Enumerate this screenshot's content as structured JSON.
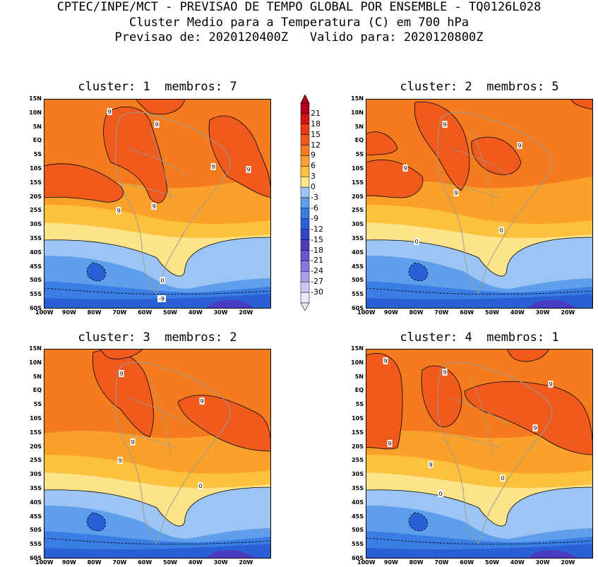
{
  "header": {
    "line1": "CPTEC/INPE/MCT - PREVISAO DE TEMPO GLOBAL POR ENSEMBLE - TQ0126L028",
    "line2": "Cluster Medio para a Temperatura (C) em 700 hPa",
    "line3": "Previsao de: 2020120400Z   Valido para: 2020120800Z"
  },
  "axes": {
    "lat_labels": [
      "15N",
      "10N",
      "5N",
      "EQ",
      "5S",
      "10S",
      "15S",
      "20S",
      "25S",
      "30S",
      "35S",
      "40S",
      "45S",
      "50S",
      "55S",
      "60S"
    ],
    "lon_labels": [
      "100W",
      "90W",
      "80W",
      "70W",
      "60W",
      "50W",
      "40W",
      "30W",
      "20W"
    ]
  },
  "colorbar": {
    "labels": [
      "21",
      "18",
      "15",
      "12",
      "9",
      "6",
      "3",
      "0",
      "-3",
      "-6",
      "-9",
      "-12",
      "-15",
      "-18",
      "-21",
      "-24",
      "-27",
      "-30"
    ],
    "colors": [
      "#b00020",
      "#d21616",
      "#e83a14",
      "#f05a1c",
      "#f57c1e",
      "#f9a12a",
      "#fcc23d",
      "#fde48a",
      "#9cc4f4",
      "#5f9eea",
      "#3a7de3",
      "#2a5fd6",
      "#3348c6",
      "#4a3cc0",
      "#6b55d2",
      "#8a76e0",
      "#ad9cec",
      "#d2c6f4",
      "#ece6fb"
    ]
  },
  "clusters": [
    {
      "title": "cluster: 1  membros: 7",
      "contour_labels": [
        "9",
        "9",
        "9",
        "9",
        "9",
        "9",
        "0",
        "-9"
      ]
    },
    {
      "title": "cluster: 2  membros: 5",
      "contour_labels": [
        "9",
        "9",
        "9",
        "9",
        "0",
        "0"
      ]
    },
    {
      "title": "cluster: 3  membros: 2",
      "contour_labels": [
        "9",
        "9",
        "9",
        "9",
        "0"
      ]
    },
    {
      "title": "cluster: 4  membros: 1",
      "contour_labels": [
        "9",
        "9",
        "9",
        "9",
        "9",
        "9",
        "0",
        "0"
      ]
    }
  ]
}
